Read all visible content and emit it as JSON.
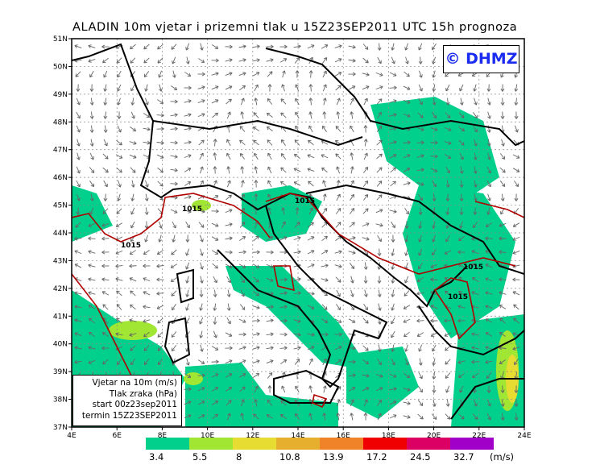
{
  "title": "ALADIN 10m vjetar i prizemni tlak u 15Z23SEP2011 UTC 15h prognoza",
  "logo": "© DHMZ",
  "map": {
    "lon_range": [
      4,
      24
    ],
    "lat_range": [
      37,
      51
    ],
    "lat_ticks": [
      "51N",
      "50N",
      "49N",
      "48N",
      "47N",
      "46N",
      "45N",
      "44N",
      "43N",
      "42N",
      "41N",
      "40N",
      "39N",
      "38N",
      "37N"
    ],
    "lon_ticks": [
      "4E",
      "6E",
      "8E",
      "10E",
      "12E",
      "14E",
      "16E",
      "18E",
      "20E",
      "22E",
      "24E"
    ],
    "isobar_labels": [
      "1015",
      "1015",
      "1015",
      "1015",
      "1015"
    ],
    "isobar_color": "#b00000",
    "arrow_color": "#666666",
    "land_border_color": "#000000"
  },
  "info": {
    "line1": "Vjetar na 10m (m/s)",
    "line2": "Tlak zraka (hPa)",
    "line3": "start 00z23sep2011",
    "line4": "termin 15Z23SEP2011"
  },
  "colorbar": {
    "unit": "(m/s)",
    "labels": [
      "3.4",
      "5.5",
      "8",
      "10.8",
      "13.9",
      "17.2",
      "24.5",
      "32.7"
    ],
    "colors": [
      "#00d08c",
      "#a0e632",
      "#e6dc32",
      "#e6af2d",
      "#f08228",
      "#f00000",
      "#dc0064",
      "#a000c8"
    ]
  }
}
